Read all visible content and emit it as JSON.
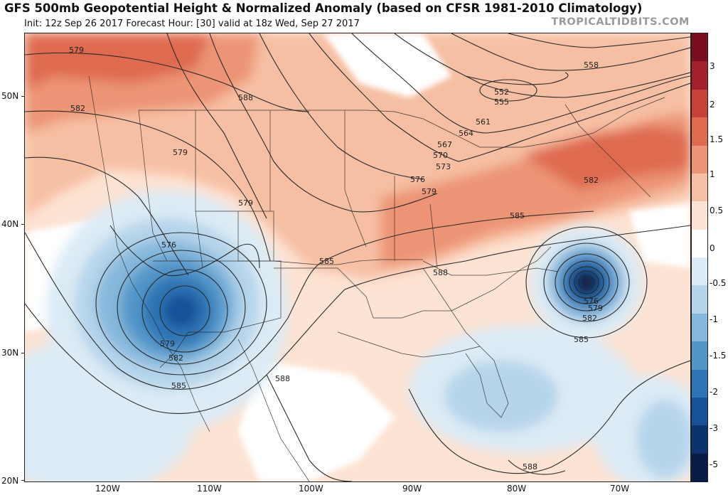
{
  "header": {
    "title": "GFS 500mb Geopotential Height & Normalized Anomaly (based on CFSR 1981-2010 Climatology)",
    "subtitle": "Init: 12z Sep 26 2017   Forecast Hour: [30]   valid at 18z Wed, Sep 27 2017",
    "brand": "TROPICALTIDBITS.COM"
  },
  "axes": {
    "latitude_labels": [
      "50N",
      "40N",
      "30N",
      "20N"
    ],
    "longitude_labels": [
      "120W",
      "110W",
      "100W",
      "90W",
      "80W",
      "70W"
    ]
  },
  "colorbar": {
    "labels": [
      "3",
      "2",
      "1.5",
      "1",
      "0.5",
      "0",
      "-0.5",
      "-1",
      "-1.5",
      "-2",
      "-3",
      "-5"
    ],
    "colors": [
      "#7a0d1f",
      "#a3202c",
      "#c8403a",
      "#de6a50",
      "#ec9475",
      "#f6bfa3",
      "#fde3d3",
      "#ffffff",
      "#dcebf5",
      "#b5d4ea",
      "#86b8dc",
      "#5296c9",
      "#2f74b4",
      "#17519a",
      "#0c336e",
      "#081b45"
    ]
  },
  "contours": {
    "height_labels": [
      "579",
      "582",
      "579",
      "579",
      "576",
      "579",
      "582",
      "585",
      "588",
      "588",
      "585",
      "588",
      "573",
      "576",
      "579",
      "570",
      "567",
      "564",
      "561",
      "555",
      "552",
      "558",
      "585",
      "582",
      "576",
      "579",
      "582",
      "585",
      "588"
    ]
  }
}
